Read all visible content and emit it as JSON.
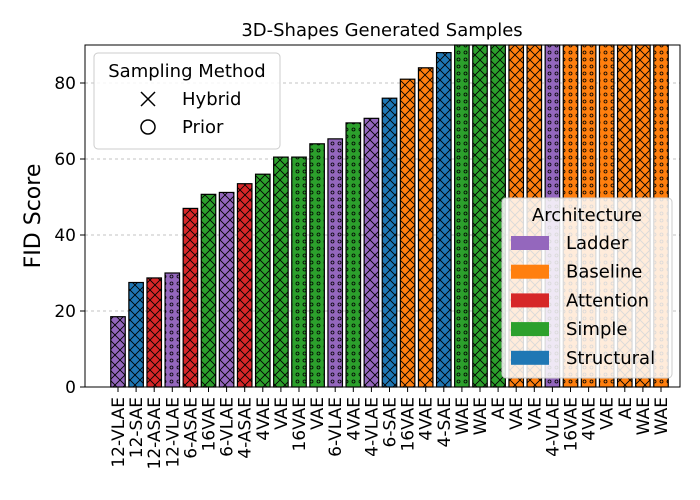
{
  "chart_data": {
    "type": "bar",
    "title": "3D-Shapes Generated Samples",
    "xlabel": "",
    "ylabel": "FID Score",
    "ylim": [
      0,
      90
    ],
    "yticks": [
      0,
      20,
      40,
      60,
      80
    ],
    "grid": "y-dashed",
    "categories": [
      "12-VLAE",
      "12-SAE",
      "12-ASAE",
      "12-VLAE",
      "6-ASAE",
      "16VAE",
      "6-VLAE",
      "4-ASAE",
      "4VAE",
      "VAE",
      "16VAE",
      "VAE",
      "6-VLAE",
      "4VAE",
      "4-VLAE",
      "6-SAE",
      "16VAE",
      "4VAE",
      "4-SAE",
      "WAE",
      "WAE",
      "AE",
      "VAE",
      "VAE",
      "4-VLAE",
      "16VAE",
      "4VAE",
      "VAE",
      "AE",
      "WAE",
      "WAE"
    ],
    "values": [
      18.5,
      27.5,
      28.7,
      30.0,
      47.0,
      50.7,
      51.2,
      53.5,
      56.0,
      60.5,
      60.5,
      64.0,
      65.3,
      69.5,
      70.7,
      76.0,
      81.0,
      84.0,
      88.0,
      90,
      90,
      90,
      90,
      90,
      90,
      90,
      90,
      90,
      90,
      90,
      90
    ],
    "architecture": [
      "Ladder",
      "Structural",
      "Attention",
      "Ladder",
      "Attention",
      "Simple",
      "Ladder",
      "Attention",
      "Simple",
      "Simple",
      "Simple",
      "Simple",
      "Ladder",
      "Simple",
      "Ladder",
      "Structural",
      "Baseline",
      "Baseline",
      "Structural",
      "Simple",
      "Simple",
      "Simple",
      "Baseline",
      "Baseline",
      "Ladder",
      "Baseline",
      "Baseline",
      "Baseline",
      "Baseline",
      "Baseline",
      "Baseline"
    ],
    "sampling": [
      "Hybrid",
      "Hybrid",
      "Hybrid",
      "Prior",
      "Hybrid",
      "Hybrid",
      "Hybrid",
      "Hybrid",
      "Hybrid",
      "Hybrid",
      "Prior",
      "Prior",
      "Prior",
      "Prior",
      "Hybrid",
      "Hybrid",
      "Hybrid",
      "Hybrid",
      "Hybrid",
      "Prior",
      "Hybrid",
      "Hybrid",
      "Hybrid",
      "Hybrid",
      "Prior",
      "Prior",
      "Prior",
      "Prior",
      "Hybrid",
      "Hybrid",
      "Prior"
    ],
    "colors": {
      "Ladder": "#9467bd",
      "Baseline": "#ff7f0e",
      "Attention": "#d62728",
      "Simple": "#2ca02c",
      "Structural": "#1f77b4"
    },
    "legend_sampling": {
      "title": "Sampling Method",
      "placement": "top-left",
      "items": [
        {
          "label": "Hybrid",
          "marker": "x-icon"
        },
        {
          "label": "Prior",
          "marker": "circle-icon"
        }
      ]
    },
    "legend_architecture": {
      "title": "Architecture",
      "placement": "lower-right",
      "items": [
        "Ladder",
        "Baseline",
        "Attention",
        "Simple",
        "Structural"
      ]
    }
  }
}
